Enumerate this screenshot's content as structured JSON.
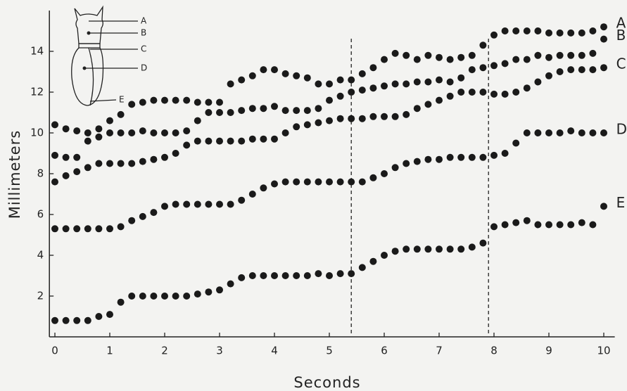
{
  "chart_data": {
    "type": "scatter",
    "xlabel": "Seconds",
    "ylabel": "Millimeters",
    "x": [
      0,
      0.2,
      0.4,
      0.6,
      0.8,
      1,
      1.2,
      1.4,
      1.6,
      1.8,
      2,
      2.2,
      2.4,
      2.6,
      2.8,
      3,
      3.2,
      3.4,
      3.6,
      3.8,
      4,
      4.2,
      4.4,
      4.6,
      4.8,
      5,
      5.2,
      5.4,
      5.6,
      5.8,
      6,
      6.2,
      6.4,
      6.6,
      6.8,
      7,
      7.2,
      7.4,
      7.6,
      7.8,
      8,
      8.2,
      8.4,
      8.6,
      8.8,
      9,
      9.2,
      9.4,
      9.6,
      9.8,
      10
    ],
    "series": [
      {
        "name": "A",
        "color": "#1a1a1a",
        "values": [
          10.4,
          10.2,
          10.1,
          10.0,
          10.2,
          10.6,
          10.9,
          11.4,
          11.5,
          11.6,
          11.6,
          11.6,
          11.6,
          11.5,
          11.5,
          11.5,
          12.4,
          12.6,
          12.8,
          13.1,
          13.1,
          12.9,
          12.8,
          12.7,
          12.4,
          12.4,
          12.6,
          12.6,
          12.9,
          13.2,
          13.6,
          13.9,
          13.8,
          13.6,
          13.8,
          13.7,
          13.6,
          13.7,
          13.8,
          14.3,
          14.8,
          15.0,
          15.0,
          15.0,
          15.0,
          14.9,
          14.9,
          14.9,
          14.9,
          15.0,
          15.2
        ]
      },
      {
        "name": "B",
        "color": "#1a1a1a",
        "values": [
          8.9,
          8.8,
          8.8,
          9.6,
          9.8,
          10.0,
          10.0,
          10.0,
          10.1,
          10.0,
          10.0,
          10.0,
          10.1,
          10.6,
          11.0,
          11.0,
          11.0,
          11.1,
          11.2,
          11.2,
          11.3,
          11.1,
          11.1,
          11.1,
          11.2,
          11.6,
          11.8,
          12.0,
          12.1,
          12.2,
          12.3,
          12.4,
          12.4,
          12.5,
          12.5,
          12.6,
          12.5,
          12.7,
          13.1,
          13.2,
          13.3,
          13.4,
          13.6,
          13.6,
          13.8,
          13.7,
          13.8,
          13.8,
          13.8,
          13.9,
          14.6
        ]
      },
      {
        "name": "C",
        "color": "#1a1a1a",
        "values": [
          7.6,
          7.9,
          8.1,
          8.3,
          8.5,
          8.5,
          8.5,
          8.5,
          8.6,
          8.7,
          8.8,
          9.0,
          9.4,
          9.6,
          9.6,
          9.6,
          9.6,
          9.6,
          9.7,
          9.7,
          9.7,
          10.0,
          10.3,
          10.4,
          10.5,
          10.6,
          10.7,
          10.7,
          10.7,
          10.8,
          10.8,
          10.8,
          10.9,
          11.2,
          11.4,
          11.6,
          11.8,
          12.0,
          12.0,
          12.0,
          11.9,
          11.9,
          12.0,
          12.2,
          12.5,
          12.8,
          13.0,
          13.1,
          13.1,
          13.1,
          13.2
        ]
      },
      {
        "name": "D",
        "color": "#1a1a1a",
        "values": [
          5.3,
          5.3,
          5.3,
          5.3,
          5.3,
          5.3,
          5.4,
          5.7,
          5.9,
          6.1,
          6.4,
          6.5,
          6.5,
          6.5,
          6.5,
          6.5,
          6.5,
          6.7,
          7.0,
          7.3,
          7.5,
          7.6,
          7.6,
          7.6,
          7.6,
          7.6,
          7.6,
          7.6,
          7.6,
          7.8,
          8.0,
          8.3,
          8.5,
          8.6,
          8.7,
          8.7,
          8.8,
          8.8,
          8.8,
          8.8,
          8.9,
          9.0,
          9.5,
          10.0,
          10.0,
          10.0,
          10.0,
          10.1,
          10.0,
          10.0,
          10.0
        ]
      },
      {
        "name": "E",
        "color": "#1a1a1a",
        "values": [
          0.8,
          0.8,
          0.8,
          0.8,
          1.0,
          1.1,
          1.7,
          2.0,
          2.0,
          2.0,
          2.0,
          2.0,
          2.0,
          2.1,
          2.2,
          2.3,
          2.6,
          2.9,
          3.0,
          3.0,
          3.0,
          3.0,
          3.0,
          3.0,
          3.1,
          3.0,
          3.1,
          3.1,
          3.4,
          3.7,
          4.0,
          4.2,
          4.3,
          4.3,
          4.3,
          4.3,
          4.3,
          4.3,
          4.4,
          4.6,
          5.4,
          5.5,
          5.6,
          5.7,
          5.5,
          5.5,
          5.5,
          5.5,
          5.6,
          5.5,
          6.4
        ]
      }
    ],
    "vlines": [
      5.4,
      7.9
    ],
    "xlim": [
      -0.1,
      10.2
    ],
    "ylim": [
      0,
      16
    ],
    "xticks": [
      0,
      1,
      2,
      3,
      4,
      5,
      6,
      7,
      8,
      9,
      10
    ],
    "yticks": [
      2,
      4,
      6,
      8,
      10,
      12,
      14
    ]
  }
}
